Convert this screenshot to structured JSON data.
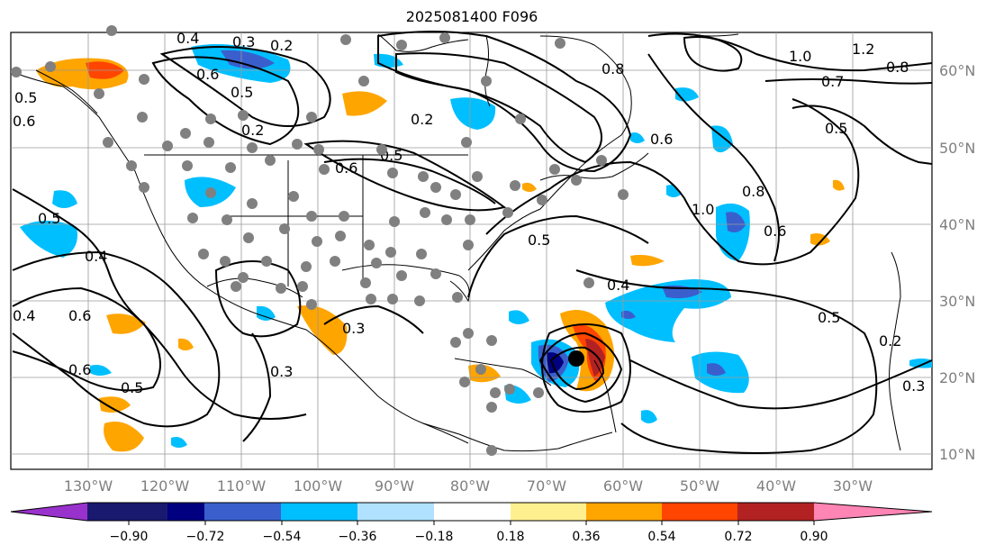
{
  "title": "2025081400 F096",
  "map": {
    "longitude_ticks": [
      "130°W",
      "120°W",
      "110°W",
      "100°W",
      "90°W",
      "80°W",
      "70°W",
      "60°W",
      "50°W",
      "40°W",
      "30°W"
    ],
    "latitude_ticks": [
      "60°N",
      "50°N",
      "40°N",
      "30°N",
      "20°N",
      "10°N"
    ],
    "contour_labels": [
      "0.4",
      "0.3",
      "0.2",
      "0.6",
      "0.5",
      "0.2",
      "0.8",
      "1.0",
      "1.2",
      "0.8",
      "0.7",
      "0.5",
      "0.6",
      "0.5",
      "0.6",
      "1.0",
      "0.8",
      "0.6",
      "0.5",
      "0.4",
      "0.4",
      "0.4",
      "0.3",
      "0.6",
      "0.6",
      "0.5",
      "0.3",
      "0.5",
      "0.2",
      "0.3",
      "0.5",
      "0.5",
      "0.6",
      "0.2"
    ],
    "storm_marker": "black-dot",
    "station_marker": "gray-dot"
  },
  "colorbar": {
    "tick_labels": [
      "−0.90",
      "−0.72",
      "−0.54",
      "−0.36",
      "−0.18",
      "0.18",
      "0.36",
      "0.54",
      "0.72",
      "0.90"
    ],
    "colors": [
      "#9932cc",
      "#191970",
      "#000080",
      "#3a5fcd",
      "#00bfff",
      "#b0e2ff",
      "#ffffff",
      "#fff08f",
      "#ffa500",
      "#ff4500",
      "#b22222",
      "#ff85b4"
    ]
  }
}
